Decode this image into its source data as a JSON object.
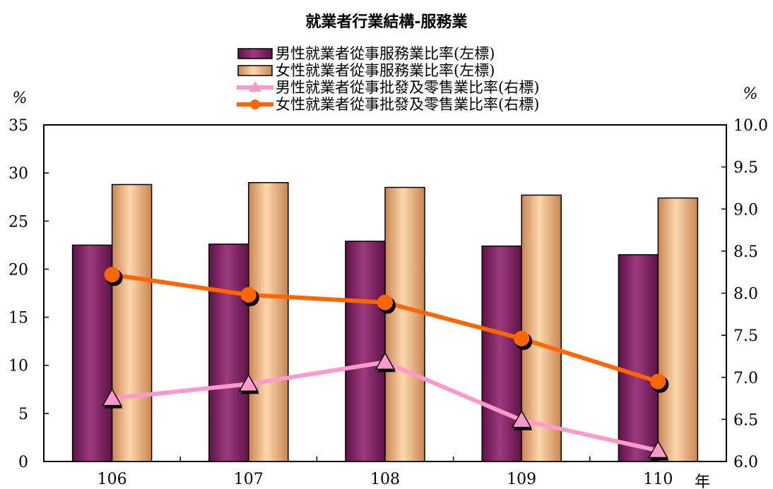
{
  "chart_data": {
    "type": "bar",
    "title": "就業者行業結構-服務業",
    "categories": [
      "106",
      "107",
      "108",
      "109",
      "110"
    ],
    "xlabel": "年",
    "ylabel_left": "%",
    "ylabel_right": "%",
    "ylim_left": [
      0,
      35
    ],
    "ylim_right": [
      6.0,
      10.0
    ],
    "left_ticks": [
      "0",
      "5",
      "10",
      "15",
      "20",
      "25",
      "30",
      "35"
    ],
    "right_ticks": [
      "6.0",
      "6.5",
      "7.0",
      "7.5",
      "8.0",
      "8.5",
      "9.0",
      "9.5",
      "10.0"
    ],
    "legend_position": "top-center",
    "series": [
      {
        "name": "男性就業者從事服務業比率(左標)",
        "type": "bar",
        "axis": "left",
        "color": "#8B2D6E",
        "values": [
          22.5,
          22.6,
          22.9,
          22.4,
          21.5
        ]
      },
      {
        "name": "女性就業者從事服務業比率(左標)",
        "type": "bar",
        "axis": "left",
        "color": "#F5BF8E",
        "values": [
          28.8,
          29.0,
          28.5,
          27.7,
          27.4
        ]
      },
      {
        "name": "男性就業者從事批發及零售業比率(右標)",
        "type": "line",
        "axis": "right",
        "color": "#FF99CC",
        "marker": "triangle",
        "values": [
          6.75,
          6.92,
          7.18,
          6.49,
          6.13
        ]
      },
      {
        "name": "女性就業者從事批發及零售業比率(右標)",
        "type": "line",
        "axis": "right",
        "color": "#FF6600",
        "marker": "circle",
        "values": [
          8.22,
          7.98,
          7.89,
          7.46,
          6.95
        ]
      }
    ]
  }
}
